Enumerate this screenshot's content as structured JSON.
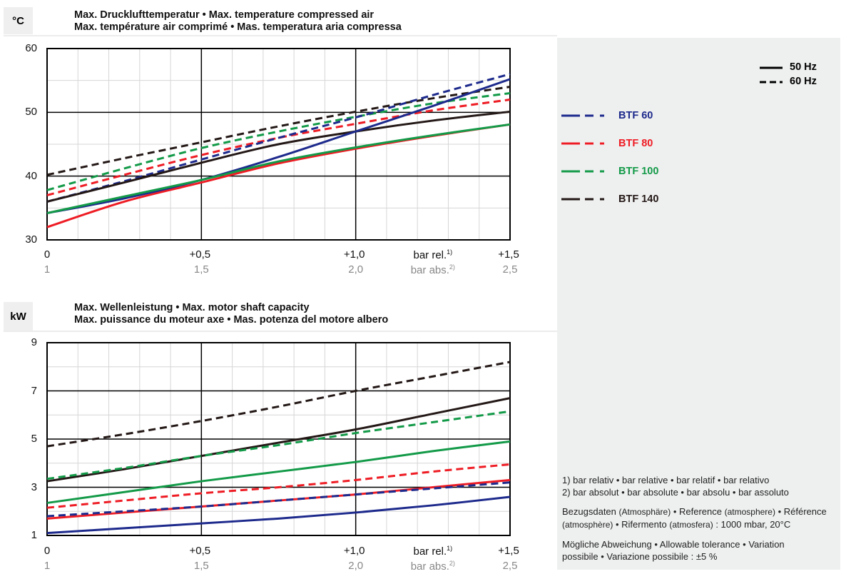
{
  "legend": {
    "freq": [
      {
        "label": "50 Hz",
        "dash": false
      },
      {
        "label": "60 Hz",
        "dash": true
      }
    ],
    "models": [
      {
        "label": "BTF 60",
        "color": "#1d2a8c"
      },
      {
        "label": "BTF 80",
        "color": "#ee1c24"
      },
      {
        "label": "BTF 100",
        "color": "#139a48"
      },
      {
        "label": "BTF 140",
        "color": "#231816"
      }
    ]
  },
  "notes": {
    "n1": "1) bar relativ • bar relative • bar relatif • bar relativo",
    "n2": "2) bar absolut • bar absolute • bar absolu • bar assoluto",
    "ref_a": "Bezugsdaten ",
    "ref_b": "(Atmosphäre)",
    "ref_c": " • Reference ",
    "ref_d": "(atmosphere)",
    "ref_e": " • Référence",
    "ref_f": "(atmosphère)",
    "ref_g": " • Rifermento ",
    "ref_h": "(atmosfera)",
    "ref_i": " :  1000 mbar, 20°C",
    "tol1": "Mögliche Abweichung • Allowable tolerance • Variation",
    "tol2": "possibile • Variazione possibile :  ±5 %"
  },
  "chart_data": [
    {
      "type": "line",
      "unit": "°C",
      "title_line1": "Max. Drucklufttemperatur • Max. temperature compressed air",
      "title_line2": "Max. température air comprimé • Mas. temperatura aria compressa",
      "xlim": [
        0,
        1.5
      ],
      "ylim": [
        30,
        60
      ],
      "yticks": [
        "60",
        "50",
        "40",
        "30"
      ],
      "ytick_values": [
        60,
        50,
        40,
        30
      ],
      "xticks_rel": [
        "0",
        "+0,5",
        "+1,0",
        "+1,5"
      ],
      "xticks_abs": [
        "1",
        "1,5",
        "2,0",
        "2,5"
      ],
      "xlabel_rel": "bar rel.",
      "xlabel_rel_sup": "1)",
      "xlabel_abs": "bar abs.",
      "xlabel_abs_sup": "2)",
      "x": [
        0,
        0.25,
        0.5,
        0.75,
        1.0,
        1.25,
        1.5
      ],
      "series": [
        {
          "name": "BTF 140 60 Hz",
          "color": "#231816",
          "dash": true,
          "values": [
            40.2,
            42.8,
            45.3,
            47.8,
            50.1,
            52.2,
            54
          ]
        },
        {
          "name": "BTF 100 60 Hz",
          "color": "#139a48",
          "dash": true,
          "values": [
            37.8,
            41.2,
            44.4,
            47,
            49.3,
            51.4,
            53
          ]
        },
        {
          "name": "BTF 80 60 Hz",
          "color": "#ee1c24",
          "dash": true,
          "values": [
            37,
            40.2,
            43.3,
            46,
            48.2,
            50.3,
            52
          ]
        },
        {
          "name": "BTF 60 60 Hz",
          "color": "#1d2a8c",
          "dash": true,
          "values": [
            36,
            39.2,
            42.6,
            46,
            49.2,
            52.7,
            56
          ]
        },
        {
          "name": "BTF 140 50 Hz",
          "color": "#231816",
          "dash": false,
          "values": [
            36,
            39,
            42.1,
            45,
            47,
            48.7,
            50.1
          ]
        },
        {
          "name": "BTF 80 50 Hz",
          "color": "#ee1c24",
          "dash": false,
          "values": [
            32,
            36,
            39,
            42,
            44.3,
            46.3,
            48.1
          ]
        },
        {
          "name": "BTF 60 50 Hz",
          "color": "#1d2a8c",
          "dash": false,
          "values": [
            34.2,
            36.5,
            39.4,
            43,
            47,
            51,
            55.2
          ]
        },
        {
          "name": "BTF 100 50 Hz",
          "color": "#139a48",
          "dash": false,
          "values": [
            34.2,
            36.8,
            39.4,
            42.3,
            44.5,
            46.4,
            48.1
          ]
        }
      ]
    },
    {
      "type": "line",
      "unit": "kW",
      "title_line1": "Max. Wellenleistung • Max. motor shaft capacity",
      "title_line2": "Max. puissance du moteur axe • Mas. potenza del motore albero",
      "xlim": [
        0,
        1.5
      ],
      "ylim": [
        1,
        9
      ],
      "yticks": [
        "9",
        "7",
        "5",
        "3",
        "1"
      ],
      "ytick_values": [
        9,
        7,
        5,
        3,
        1
      ],
      "xticks_rel": [
        "0",
        "+0,5",
        "+1,0",
        "+1,5"
      ],
      "xticks_abs": [
        "1",
        "1,5",
        "2,0",
        "2,5"
      ],
      "xlabel_rel": "bar rel.",
      "xlabel_rel_sup": "1)",
      "xlabel_abs": "bar abs.",
      "xlabel_abs_sup": "2)",
      "x": [
        0,
        0.25,
        0.5,
        0.75,
        1.0,
        1.25,
        1.5
      ],
      "series": [
        {
          "name": "BTF 140 60 Hz",
          "color": "#231816",
          "dash": true,
          "values": [
            4.7,
            5.2,
            5.75,
            6.35,
            7.0,
            7.6,
            8.2
          ]
        },
        {
          "name": "BTF 140 50 Hz",
          "color": "#231816",
          "dash": false,
          "values": [
            3.25,
            3.75,
            4.3,
            4.85,
            5.4,
            6.05,
            6.7
          ]
        },
        {
          "name": "BTF 100 60 Hz",
          "color": "#139a48",
          "dash": true,
          "values": [
            3.35,
            3.8,
            4.3,
            4.75,
            5.25,
            5.7,
            6.15
          ]
        },
        {
          "name": "BTF 100 50 Hz",
          "color": "#139a48",
          "dash": false,
          "values": [
            2.35,
            2.8,
            3.25,
            3.65,
            4.05,
            4.5,
            4.9
          ]
        },
        {
          "name": "BTF 80 60 Hz",
          "color": "#ee1c24",
          "dash": true,
          "values": [
            2.15,
            2.45,
            2.75,
            3.0,
            3.3,
            3.65,
            3.95
          ]
        },
        {
          "name": "BTF 80 50 Hz",
          "color": "#ee1c24",
          "dash": false,
          "values": [
            1.7,
            1.95,
            2.2,
            2.45,
            2.7,
            3.0,
            3.3
          ]
        },
        {
          "name": "BTF 60 60 Hz",
          "color": "#1d2a8c",
          "dash": true,
          "values": [
            1.8,
            2.0,
            2.2,
            2.45,
            2.7,
            2.95,
            3.2
          ]
        },
        {
          "name": "BTF 60 50 Hz",
          "color": "#1d2a8c",
          "dash": false,
          "values": [
            1.1,
            1.3,
            1.5,
            1.7,
            1.95,
            2.25,
            2.6
          ]
        }
      ]
    }
  ]
}
